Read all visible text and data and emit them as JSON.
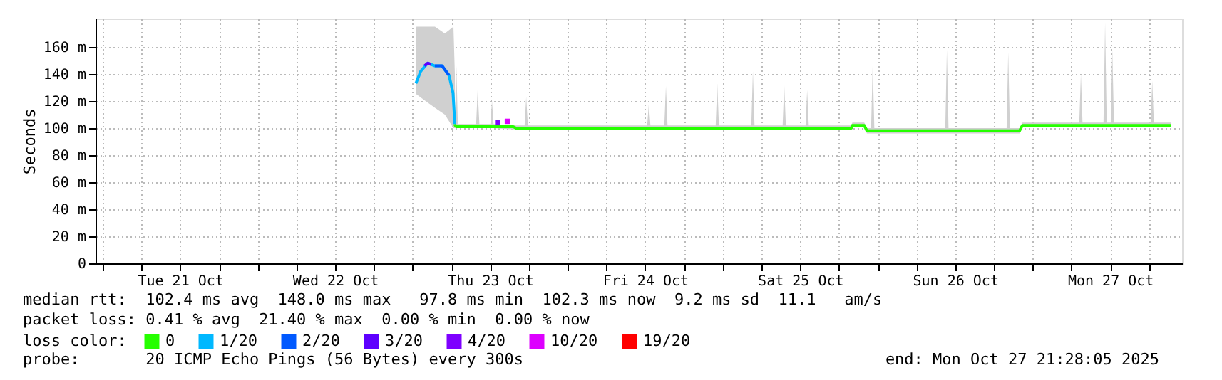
{
  "chart_data": {
    "type": "line",
    "ylabel": "Seconds",
    "legend_title": "loss color:",
    "legend": "bottom",
    "grid": true,
    "marker": "none",
    "line_style": "solid",
    "xlim": [
      "2025-10-20T22:54",
      "2025-10-27T23:08"
    ],
    "xticks": [
      {
        "value": "2025-10-21T00:00",
        "label": null
      },
      {
        "value": "2025-10-21T06:00",
        "label": null
      },
      {
        "value": "2025-10-21T12:00",
        "label": "Tue 21 Oct"
      },
      {
        "value": "2025-10-21T18:00",
        "label": null
      },
      {
        "value": "2025-10-22T00:00",
        "label": null
      },
      {
        "value": "2025-10-22T06:00",
        "label": null
      },
      {
        "value": "2025-10-22T12:00",
        "label": "Wed 22 Oct"
      },
      {
        "value": "2025-10-22T18:00",
        "label": null
      },
      {
        "value": "2025-10-23T00:00",
        "label": null
      },
      {
        "value": "2025-10-23T06:00",
        "label": null
      },
      {
        "value": "2025-10-23T12:00",
        "label": "Thu 23 Oct"
      },
      {
        "value": "2025-10-23T18:00",
        "label": null
      },
      {
        "value": "2025-10-24T00:00",
        "label": null
      },
      {
        "value": "2025-10-24T06:00",
        "label": null
      },
      {
        "value": "2025-10-24T12:00",
        "label": "Fri 24 Oct"
      },
      {
        "value": "2025-10-24T18:00",
        "label": null
      },
      {
        "value": "2025-10-25T00:00",
        "label": null
      },
      {
        "value": "2025-10-25T06:00",
        "label": null
      },
      {
        "value": "2025-10-25T12:00",
        "label": "Sat 25 Oct"
      },
      {
        "value": "2025-10-25T18:00",
        "label": null
      },
      {
        "value": "2025-10-26T00:00",
        "label": null
      },
      {
        "value": "2025-10-26T06:00",
        "label": null
      },
      {
        "value": "2025-10-26T12:00",
        "label": "Sun 26 Oct"
      },
      {
        "value": "2025-10-26T18:00",
        "label": null
      },
      {
        "value": "2025-10-27T00:00",
        "label": null
      },
      {
        "value": "2025-10-27T06:00",
        "label": null
      },
      {
        "value": "2025-10-27T12:00",
        "label": "Mon 27 Oct"
      },
      {
        "value": "2025-10-27T18:00",
        "label": null
      }
    ],
    "ylim": [
      0,
      181
    ],
    "yticks": [
      0,
      {
        "value": 20,
        "label": "20 m"
      },
      {
        "value": 40,
        "label": "40 m"
      },
      {
        "value": 60,
        "label": "60 m"
      },
      {
        "value": 80,
        "label": "80 m"
      },
      {
        "value": 100,
        "label": "100 m"
      },
      {
        "value": 120,
        "label": "120 m"
      },
      {
        "value": 140,
        "label": "140 m"
      },
      {
        "value": 160,
        "label": "160 m"
      }
    ],
    "series": [
      {
        "name": "0",
        "color": "#26ff00",
        "x": [
          "2025-10-23T00:30",
          "2025-10-23T00:35",
          "2025-10-23T02:00",
          "2025-10-23T03:27",
          "2025-10-23T04:59",
          "2025-10-23T06:19",
          "2025-10-23T06:32",
          "2025-10-23T06:35",
          "2025-10-23T06:46",
          "2025-10-23T07:00",
          "2025-10-23T09:50",
          "2025-10-23T10:04",
          "2025-10-23T10:20",
          "2025-10-23T12:02",
          "2025-10-23T12:17",
          "2025-10-23T12:32",
          "2025-10-23T15:35",
          "2025-10-23T16:00",
          "2025-10-23T17:20",
          "2025-10-23T17:35",
          "2025-10-23T17:50",
          "2025-10-24T12:19",
          "2025-10-24T12:34",
          "2025-10-24T12:49",
          "2025-10-24T14:58",
          "2025-10-24T15:13",
          "2025-10-24T15:28",
          "2025-10-24T22:55",
          "2025-10-24T23:10",
          "2025-10-24T23:25",
          "2025-10-25T04:26",
          "2025-10-25T04:41",
          "2025-10-25T04:56",
          "2025-10-25T09:17",
          "2025-10-25T09:32",
          "2025-10-25T09:47",
          "2025-10-25T12:50",
          "2025-10-25T13:05",
          "2025-10-25T13:20",
          "2025-10-25T19:55",
          "2025-10-25T20:05",
          "2025-10-25T21:55",
          "2025-10-25T22:20",
          "2025-10-25T22:59",
          "2025-10-25T23:14",
          "2025-10-25T23:29",
          "2025-10-26T10:28",
          "2025-10-26T10:43",
          "2025-10-26T10:58",
          "2025-10-26T19:58",
          "2025-10-26T20:13",
          "2025-10-26T20:28",
          "2025-10-26T21:58",
          "2025-10-26T22:25",
          "2025-10-27T07:13",
          "2025-10-27T07:28",
          "2025-10-27T07:43",
          "2025-10-27T10:58",
          "2025-10-27T11:13",
          "2025-10-27T11:28",
          "2025-10-27T12:05",
          "2025-10-27T12:20",
          "2025-10-27T12:35",
          "2025-10-27T18:16",
          "2025-10-27T18:31",
          "2025-10-27T18:46",
          "2025-10-27T21:25"
        ],
        "values": [
          null,
          null,
          null,
          null,
          null,
          null,
          103,
          102,
          101,
          101,
          101,
          101,
          101,
          101,
          101,
          101,
          101,
          100,
          100,
          100,
          100,
          100,
          100,
          100,
          100,
          100,
          100,
          100,
          100,
          100,
          100,
          100,
          100,
          100,
          100,
          100,
          100,
          100,
          100,
          100,
          102,
          102,
          98,
          98,
          98,
          98,
          98,
          98,
          98,
          98,
          98,
          98,
          98,
          102,
          102,
          102,
          102,
          102,
          102,
          102,
          102,
          102,
          102,
          102,
          102,
          102,
          102
        ],
        "lower": [
          128,
          125,
          120,
          115,
          110,
          100,
          100,
          100,
          100,
          100,
          100,
          100,
          100,
          100,
          100,
          100,
          99,
          99,
          99,
          99,
          99,
          99,
          99,
          99,
          99,
          99,
          99,
          99,
          99,
          99,
          99,
          99,
          99,
          99,
          99,
          99,
          99,
          99,
          99,
          99,
          101,
          101,
          96,
          96,
          96,
          96,
          96,
          96,
          96,
          96,
          96,
          96,
          96,
          101,
          101,
          101,
          101,
          101,
          101,
          101,
          101,
          101,
          101,
          101,
          101,
          101,
          101
        ],
        "upper": [
          150,
          175,
          175,
          175,
          170,
          175,
          140,
          105,
          146,
          103,
          103,
          128,
          103,
          103,
          120,
          103,
          102,
          102,
          102,
          123,
          102,
          102,
          118,
          102,
          102,
          131,
          102,
          102,
          133,
          102,
          102,
          142,
          102,
          102,
          132,
          102,
          102,
          128,
          102,
          102,
          104,
          104,
          100,
          100,
          148,
          100,
          100,
          158,
          100,
          100,
          156,
          100,
          100,
          104,
          104,
          140,
          104,
          104,
          178,
          104,
          104,
          158,
          104,
          104,
          135,
          104,
          104
        ]
      },
      {
        "name": "1/20",
        "color": "#00b8ff",
        "x": [
          "2025-10-23T00:30",
          "2025-10-23T01:15",
          "2025-10-23T02:20",
          "2025-10-23T03:26",
          "2025-10-23T04:33",
          "2025-10-23T05:38",
          "2025-10-23T06:15",
          "2025-10-23T06:32"
        ],
        "values": [
          133,
          142,
          148,
          146,
          146,
          139,
          126,
          103
        ]
      },
      {
        "name": "2/20",
        "color": "#0059ff",
        "x": [
          "2025-10-23T03:26",
          "2025-10-23T04:33",
          "2025-10-23T05:38"
        ],
        "values": [
          146,
          146,
          139
        ]
      },
      {
        "name": "3/20",
        "color": "#5e00ff",
        "x": [
          "2025-10-23T01:50",
          "2025-10-23T02:20",
          "2025-10-23T02:50"
        ],
        "values": [
          146,
          148,
          147
        ]
      },
      {
        "name": "4/20",
        "type": "scatter",
        "marker": "square",
        "color": "#7e00ff",
        "x": [
          "2025-10-23T13:10"
        ],
        "values": [
          104
        ]
      },
      {
        "name": "10/20",
        "type": "scatter",
        "marker": "square",
        "color": "#dd00ff",
        "x": [
          "2025-10-23T14:40"
        ],
        "values": [
          105
        ]
      },
      {
        "name": "19/20",
        "color": "#ff0000"
      }
    ],
    "annotations": [
      "median rtt:  102.4 ms avg  148.0 ms max   97.8 ms min  102.3 ms now  9.2 ms sd  11.1   am/s",
      "packet loss: 0.41 % avg  21.40 % max  0.00 % min  0.00 % now",
      "probe:       20 ICMP Echo Pings (56 Bytes) every 300s",
      "end: Mon Oct 27 21:28:05 2025"
    ]
  }
}
